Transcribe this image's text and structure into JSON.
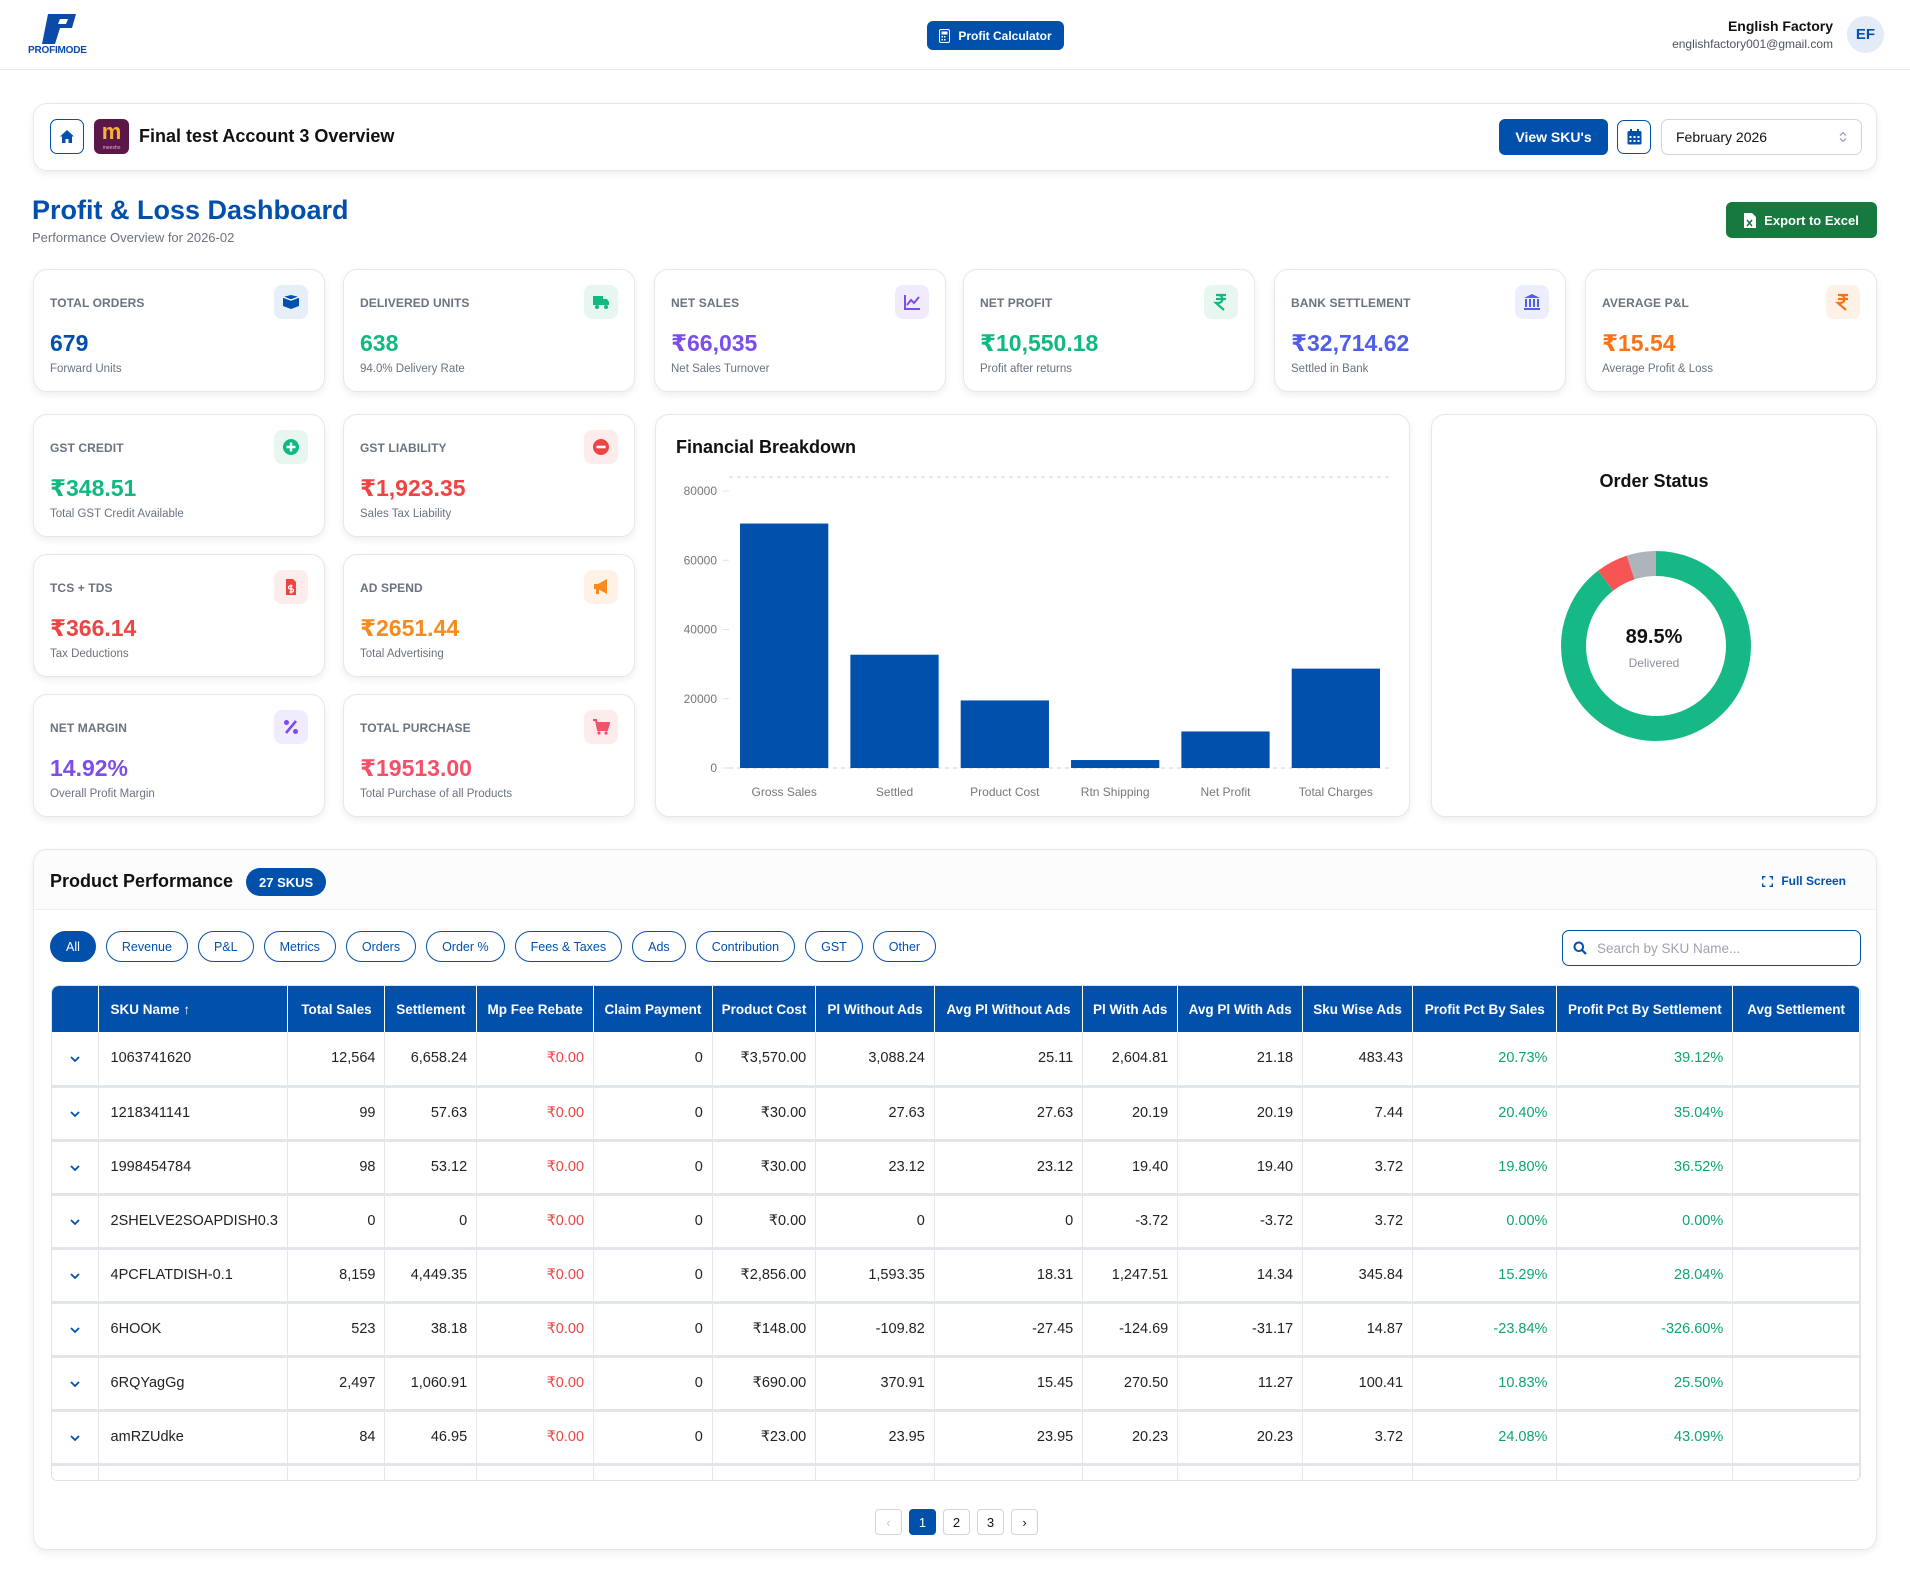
{
  "header": {
    "brand": "PROFIMODE",
    "calc_label": "Profit Calculator",
    "user_name": "English Factory",
    "user_email": "englishfactory001@gmail.com",
    "avatar_initials": "EF"
  },
  "account": {
    "title": "Final test Account 3 Overview",
    "marketplace_logo": "m",
    "marketplace_sub": "meesho",
    "view_skus_label": "View SKU's",
    "month_value": "February 2026"
  },
  "dashboard": {
    "title": "Profit & Loss Dashboard",
    "subtitle": "Performance Overview for 2026-02",
    "export_label": "Export to Excel"
  },
  "colors": {
    "primary": "#0151ac",
    "green": "#10b981",
    "red": "#ef4444",
    "purple": "#7c3aed",
    "orange": "#f97316",
    "indigo": "#4f5ee8",
    "excel": "#17793e"
  },
  "stats": [
    {
      "label": "TOTAL ORDERS",
      "value": "679",
      "sub": "Forward Units",
      "color": "#0151ac",
      "icon": "box-icon",
      "bg": "#e6eef8"
    },
    {
      "label": "DELIVERED UNITS",
      "value": "638",
      "sub": "94.0% Delivery Rate",
      "color": "#10b981",
      "icon": "truck-icon",
      "bg": "#e7f7f0"
    },
    {
      "label": "NET SALES",
      "value": "₹66,035",
      "sub": "Net Sales Turnover",
      "color": "#7c4dea",
      "icon": "chart-line-icon",
      "bg": "#f0ecfd"
    },
    {
      "label": "NET PROFIT",
      "value": "₹10,550.18",
      "sub": "Profit after returns",
      "color": "#10b981",
      "icon": "rupee-icon",
      "bg": "#e7f7f0"
    },
    {
      "label": "BANK SETTLEMENT",
      "value": "₹32,714.62",
      "sub": "Settled in Bank",
      "color": "#4f5ee8",
      "icon": "bank-icon",
      "bg": "#eceefd"
    },
    {
      "label": "AVERAGE P&L",
      "value": "₹15.54",
      "sub": "Average Profit & Loss",
      "color": "#f97316",
      "icon": "rupee-icon",
      "bg": "#fef1e6"
    },
    {
      "label": "GST CREDIT",
      "value": "₹348.51",
      "sub": "Total GST Credit Available",
      "color": "#10b981",
      "icon": "plus-circle-icon",
      "bg": "#e7f7f0"
    },
    {
      "label": "GST LIABILITY",
      "value": "₹1,923.35",
      "sub": "Sales Tax Liability",
      "color": "#ef4444",
      "icon": "minus-circle-icon",
      "bg": "#fdecec"
    },
    {
      "label": "TCS + TDS",
      "value": "₹366.14",
      "sub": "Tax Deductions",
      "color": "#ef4444",
      "icon": "invoice-icon",
      "bg": "#fdecec"
    },
    {
      "label": "AD SPEND",
      "value": "₹2651.44",
      "sub": "Total Advertising",
      "color": "#f98a1c",
      "icon": "megaphone-icon",
      "bg": "#fef1e6"
    },
    {
      "label": "NET MARGIN",
      "value": "14.92%",
      "sub": "Overall Profit Margin",
      "color": "#7c4dea",
      "icon": "percent-icon",
      "bg": "#f0ecfd"
    },
    {
      "label": "TOTAL PURCHASE",
      "value": "₹19513.00",
      "sub": "Total Purchase of all Products",
      "color": "#f4506a",
      "icon": "cart-icon",
      "bg": "#fdecec"
    }
  ],
  "chart_data": [
    {
      "type": "bar",
      "title": "Financial Breakdown",
      "categories": [
        "Gross Sales",
        "Settled",
        "Product Cost",
        "Rtn Shipping",
        "Net Profit",
        "Total Charges"
      ],
      "values": [
        70600,
        32714.62,
        19513,
        2300,
        10550.18,
        28700
      ],
      "ylim": [
        0,
        84000
      ],
      "yticks": [
        "0",
        "20000",
        "40000",
        "60000",
        "80000"
      ],
      "grid": true,
      "bar_color": "#0151ac"
    },
    {
      "type": "pie",
      "title": "Order Status",
      "center_value": "89.5%",
      "center_label": "Delivered",
      "slices": [
        {
          "value": 89.5,
          "color": "#16b985"
        },
        {
          "value": 5.5,
          "color": "#f75555"
        },
        {
          "value": 5.0,
          "color": "#adb4bc"
        }
      ]
    }
  ],
  "products": {
    "title": "Product Performance",
    "badge": "27 SKUS",
    "fullscreen_label": "Full Screen",
    "filters": [
      "All",
      "Revenue",
      "P&L",
      "Metrics",
      "Orders",
      "Order %",
      "Fees & Taxes",
      "Ads",
      "Contribution",
      "GST",
      "Other"
    ],
    "search_placeholder": "Search by SKU Name...",
    "columns": [
      "SKU Name ↑",
      "Total Sales",
      "Settlement",
      "Mp Fee Rebate",
      "Claim Payment",
      "Product Cost",
      "Pl Without Ads",
      "Avg Pl Without Ads",
      "Pl With Ads",
      "Avg Pl With Ads",
      "Sku Wise Ads",
      "Profit Pct By Sales",
      "Profit Pct By Settlement",
      "Avg Settlement"
    ],
    "rows": [
      [
        "1063741620",
        "12,564",
        "6,658.24",
        "₹0.00",
        "0",
        "₹3,570.00",
        "3,088.24",
        "25.11",
        "2,604.81",
        "21.18",
        "483.43",
        "20.73%",
        "39.12%",
        ""
      ],
      [
        "1218341141",
        "99",
        "57.63",
        "₹0.00",
        "0",
        "₹30.00",
        "27.63",
        "27.63",
        "20.19",
        "20.19",
        "7.44",
        "20.40%",
        "35.04%",
        ""
      ],
      [
        "1998454784",
        "98",
        "53.12",
        "₹0.00",
        "0",
        "₹30.00",
        "23.12",
        "23.12",
        "19.40",
        "19.40",
        "3.72",
        "19.80%",
        "36.52%",
        ""
      ],
      [
        "2SHELVE2SOAPDISH0.3",
        "0",
        "0",
        "₹0.00",
        "0",
        "₹0.00",
        "0",
        "0",
        "-3.72",
        "-3.72",
        "3.72",
        "0.00%",
        "0.00%",
        ""
      ],
      [
        "4PCFLATDISH-0.1",
        "8,159",
        "4,449.35",
        "₹0.00",
        "0",
        "₹2,856.00",
        "1,593.35",
        "18.31",
        "1,247.51",
        "14.34",
        "345.84",
        "15.29%",
        "28.04%",
        ""
      ],
      [
        "6HOOK",
        "523",
        "38.18",
        "₹0.00",
        "0",
        "₹148.00",
        "-109.82",
        "-27.45",
        "-124.69",
        "-31.17",
        "14.87",
        "-23.84%",
        "-326.60%",
        ""
      ],
      [
        "6RQYagGg",
        "2,497",
        "1,060.91",
        "₹0.00",
        "0",
        "₹690.00",
        "370.91",
        "15.45",
        "270.50",
        "11.27",
        "100.41",
        "10.83%",
        "25.50%",
        ""
      ],
      [
        "amRZUdke",
        "84",
        "46.95",
        "₹0.00",
        "0",
        "₹23.00",
        "23.95",
        "23.95",
        "20.23",
        "20.23",
        "3.72",
        "24.08%",
        "43.09%",
        ""
      ]
    ],
    "pagination": {
      "prev": "‹",
      "pages": [
        "1",
        "2",
        "3"
      ],
      "current": "1",
      "next": "›"
    }
  }
}
